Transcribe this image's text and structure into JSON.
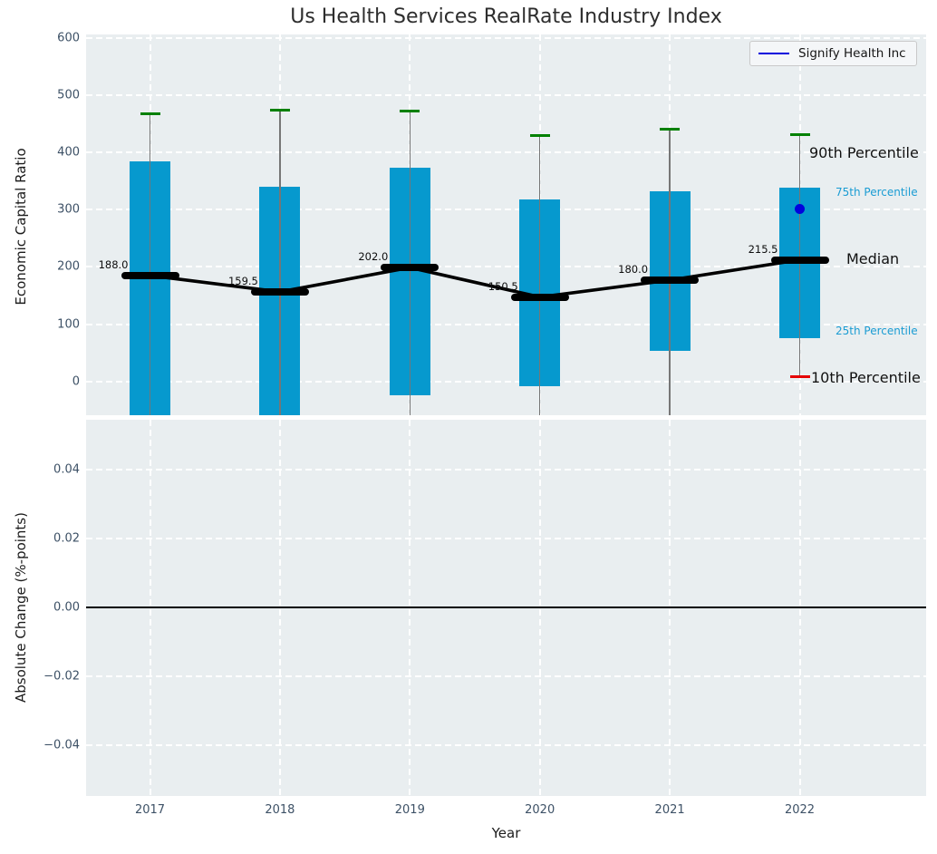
{
  "title": "Us Health Services RealRate Industry Index",
  "legend": {
    "label": "Signify Health Inc"
  },
  "annotations": {
    "p90": "90th Percentile",
    "p75": "75th Percentile",
    "median": "Median",
    "p25": "25th Percentile",
    "p10": "10th Percentile"
  },
  "axes": {
    "top": {
      "ylabel": "Economic Capital Ratio"
    },
    "bottom": {
      "ylabel": "Absolute Change (%-points)",
      "xlabel": "Year"
    }
  },
  "colors": {
    "bar": "#0699ce",
    "p90_cap": "#008000",
    "p10_cap": "#e50000",
    "median": "#000000",
    "whisker": "#767676",
    "company": "#0202dd",
    "panel_bg": "#e9eef0",
    "grid": "#ffffff",
    "tick_text": "#3d5166",
    "percentile_blue": "#1a9cd3"
  },
  "chart_data": [
    {
      "type": "boxplot",
      "title": "Us Health Services RealRate Industry Index",
      "ylabel": "Economic Capital Ratio",
      "xlabel": "Year",
      "categories": [
        "2017",
        "2018",
        "2019",
        "2020",
        "2021",
        "2022"
      ],
      "yticks": [
        600,
        500,
        400,
        300,
        200,
        100,
        0
      ],
      "ylim": [
        -59,
        609
      ],
      "grid": true,
      "legend_position": "upper right",
      "series": {
        "p90": [
          467,
          474,
          473,
          429,
          440,
          432
        ],
        "p75": [
          385,
          340,
          373,
          318,
          332,
          338
        ],
        "median": [
          188.0,
          159.5,
          202.0,
          150.5,
          180.0,
          215.5
        ],
        "median_labels": [
          "188.0",
          "159.5",
          "202.0",
          "150.5",
          "180.0",
          "215.5"
        ],
        "p25": [
          -70,
          -70,
          -24,
          -8,
          54,
          75
        ],
        "p25_clipped_below_axis": [
          true,
          true,
          false,
          false,
          false,
          false
        ],
        "p10": [
          null,
          null,
          null,
          null,
          null,
          8
        ]
      },
      "company_point": {
        "name": "Signify Health Inc",
        "category": "2022",
        "value": 302
      }
    },
    {
      "type": "line",
      "ylabel": "Absolute Change (%-points)",
      "xlabel": "Year",
      "categories": [
        "2017",
        "2018",
        "2019",
        "2020",
        "2021",
        "2022"
      ],
      "yticks": [
        "0.04",
        "0.02",
        "0.00",
        "−0.02",
        "−0.04"
      ],
      "ytick_values": [
        0.04,
        0.02,
        0.0,
        -0.02,
        -0.04
      ],
      "ylim": [
        -0.055,
        0.055
      ],
      "zero_line": 0.0,
      "values": [],
      "grid": true
    }
  ]
}
